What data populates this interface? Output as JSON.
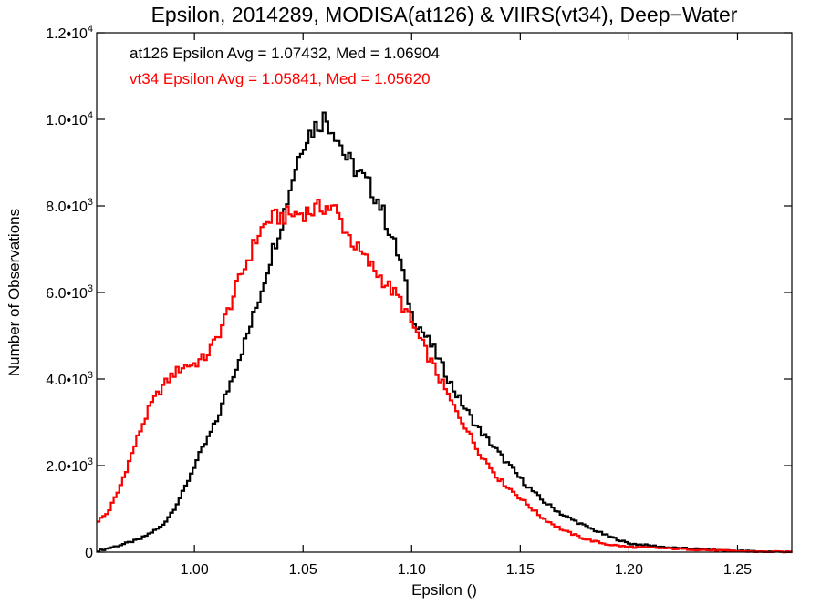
{
  "chart_data": {
    "type": "line",
    "title": "Epsilon, 2014289, MODISA(at126) & VIIRS(vt34), Deep−Water",
    "xlabel": "Epsilon ()",
    "ylabel": "Number of Observations",
    "xlim": [
      0.955,
      1.275
    ],
    "ylim": [
      0,
      12000
    ],
    "x_ticks": [
      {
        "value": 1.0,
        "label": "1.00"
      },
      {
        "value": 1.05,
        "label": "1.05"
      },
      {
        "value": 1.1,
        "label": "1.10"
      },
      {
        "value": 1.15,
        "label": "1.15"
      },
      {
        "value": 1.2,
        "label": "1.20"
      },
      {
        "value": 1.25,
        "label": "1.25"
      }
    ],
    "y_ticks": [
      {
        "value": 0,
        "mant": "0",
        "exp": ""
      },
      {
        "value": 2000,
        "mant": "2.0•10",
        "exp": "3"
      },
      {
        "value": 4000,
        "mant": "4.0•10",
        "exp": "3"
      },
      {
        "value": 6000,
        "mant": "6.0•10",
        "exp": "3"
      },
      {
        "value": 8000,
        "mant": "8.0•10",
        "exp": "3"
      },
      {
        "value": 10000,
        "mant": "1.0•10",
        "exp": "4"
      },
      {
        "value": 12000,
        "mant": "1.2•10",
        "exp": "4"
      }
    ],
    "annotations": [
      {
        "text": "at126 Epsilon Avg = 1.07432, Med = 1.06904",
        "color": "#000000"
      },
      {
        "text": "vt34 Epsilon Avg = 1.05841, Med = 1.05620",
        "color": "#ff0000"
      }
    ],
    "grid": false,
    "step": true,
    "series": [
      {
        "color": "#000000",
        "x": [
          0.955,
          0.965,
          0.975,
          0.985,
          0.99,
          0.995,
          1.0,
          1.005,
          1.01,
          1.015,
          1.02,
          1.025,
          1.03,
          1.035,
          1.04,
          1.045,
          1.05,
          1.055,
          1.06,
          1.065,
          1.07,
          1.075,
          1.08,
          1.085,
          1.09,
          1.095,
          1.1,
          1.105,
          1.11,
          1.115,
          1.12,
          1.125,
          1.13,
          1.14,
          1.15,
          1.16,
          1.17,
          1.18,
          1.19,
          1.2,
          1.21,
          1.22,
          1.23,
          1.24,
          1.25,
          1.26,
          1.275
        ],
        "y": [
          20,
          150,
          300,
          600,
          950,
          1400,
          2000,
          2500,
          3000,
          3700,
          4400,
          5100,
          5900,
          6800,
          7600,
          8600,
          9500,
          9800,
          10050,
          9700,
          9100,
          8800,
          8500,
          8100,
          7400,
          6700,
          5500,
          5100,
          4700,
          4200,
          3700,
          3300,
          2900,
          2300,
          1700,
          1200,
          850,
          600,
          380,
          200,
          150,
          100,
          80,
          50,
          30,
          15,
          5
        ]
      },
      {
        "color": "#ff0000",
        "x": [
          0.955,
          0.96,
          0.965,
          0.97,
          0.975,
          0.98,
          0.985,
          0.99,
          0.995,
          1.0,
          1.005,
          1.01,
          1.015,
          1.02,
          1.025,
          1.03,
          1.035,
          1.04,
          1.045,
          1.05,
          1.055,
          1.06,
          1.065,
          1.07,
          1.075,
          1.08,
          1.085,
          1.09,
          1.095,
          1.1,
          1.105,
          1.11,
          1.115,
          1.12,
          1.125,
          1.13,
          1.14,
          1.15,
          1.16,
          1.17,
          1.18,
          1.19,
          1.2,
          1.21,
          1.22,
          1.23,
          1.24,
          1.25,
          1.26,
          1.275
        ],
        "y": [
          700,
          900,
          1400,
          2100,
          2800,
          3400,
          3800,
          4100,
          4300,
          4350,
          4500,
          4900,
          5500,
          6200,
          6800,
          7400,
          7700,
          7750,
          7800,
          7850,
          7900,
          8000,
          7900,
          7400,
          7000,
          6700,
          6400,
          6100,
          5800,
          5300,
          4800,
          4300,
          3800,
          3300,
          2900,
          2400,
          1700,
          1250,
          800,
          500,
          300,
          180,
          120,
          100,
          80,
          60,
          40,
          20,
          10,
          5
        ]
      }
    ]
  }
}
